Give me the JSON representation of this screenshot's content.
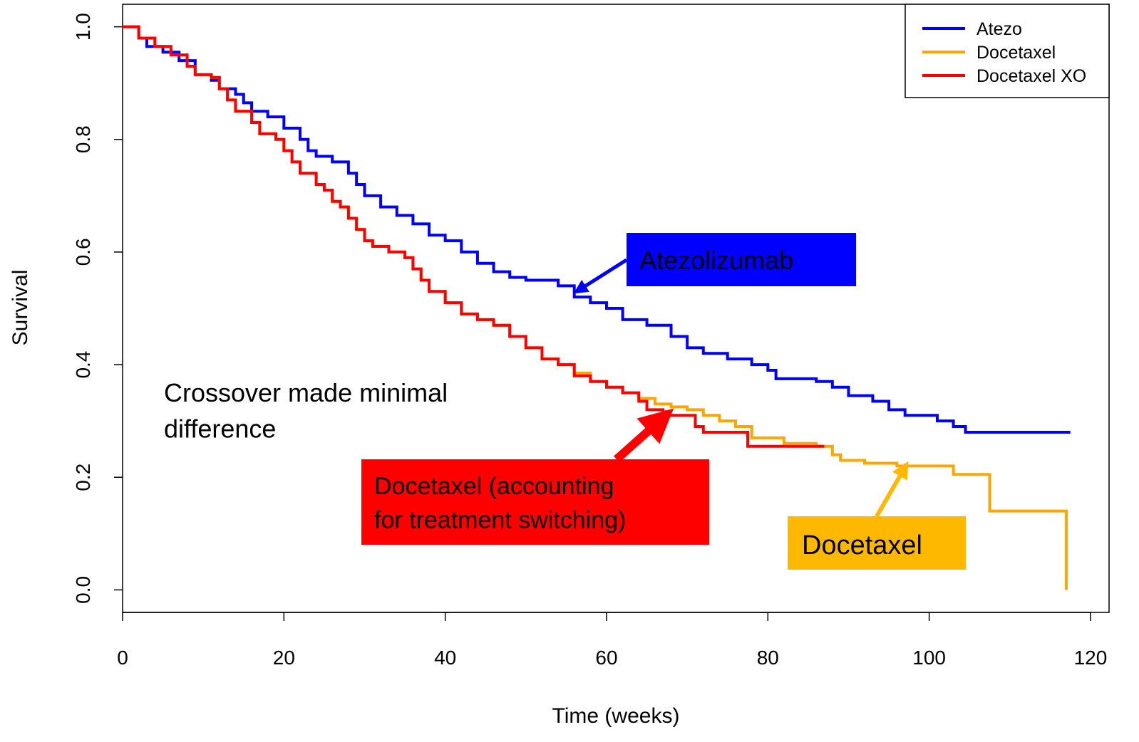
{
  "chart_data": {
    "type": "line",
    "step": "post",
    "x_label": "Time (weeks)",
    "y_label": "Survival",
    "xlim": [
      0,
      122.3
    ],
    "ylim": [
      -0.04,
      1.04
    ],
    "xticks": [
      0,
      20,
      40,
      60,
      80,
      100,
      120
    ],
    "yticks": [
      {
        "value": 0.0,
        "label": "0.0"
      },
      0.2,
      0.4,
      0.6,
      0.8,
      {
        "value": 1.0,
        "label": "1.0"
      }
    ],
    "legend": "top-right",
    "series": [
      {
        "name": "Atezo",
        "color": "#0000ff",
        "x": [
          0,
          2,
          3,
          5,
          7,
          9,
          11,
          12,
          14,
          15,
          16,
          18,
          20,
          22,
          23,
          24,
          26,
          28,
          29,
          30,
          32,
          34,
          36,
          38,
          40,
          42,
          44,
          46,
          48,
          50,
          54,
          56,
          58,
          60,
          62,
          65,
          68,
          70,
          72,
          75,
          78,
          80,
          81,
          86,
          88,
          90,
          93,
          95,
          97,
          101,
          103,
          104.5,
          117.5
        ],
        "values": [
          1.0,
          0.98,
          0.965,
          0.955,
          0.94,
          0.915,
          0.905,
          0.89,
          0.88,
          0.865,
          0.85,
          0.84,
          0.82,
          0.8,
          0.78,
          0.77,
          0.76,
          0.74,
          0.72,
          0.7,
          0.68,
          0.665,
          0.65,
          0.63,
          0.62,
          0.6,
          0.58,
          0.565,
          0.555,
          0.55,
          0.54,
          0.52,
          0.51,
          0.5,
          0.48,
          0.47,
          0.45,
          0.43,
          0.42,
          0.41,
          0.4,
          0.39,
          0.375,
          0.37,
          0.36,
          0.345,
          0.335,
          0.32,
          0.31,
          0.3,
          0.29,
          0.28,
          0.28
        ]
      },
      {
        "name": "Docetaxel",
        "color": "#ffa500",
        "x": [
          0,
          2,
          4,
          6,
          8,
          9,
          11,
          12,
          13,
          14,
          16,
          17,
          19,
          20,
          21,
          22,
          24,
          25,
          26,
          27,
          28,
          29,
          30,
          31,
          33,
          35,
          36,
          37,
          38,
          40,
          42,
          44,
          46,
          48,
          50,
          52,
          54,
          56,
          58,
          60,
          62,
          64,
          66,
          68,
          70,
          72,
          74,
          76,
          78,
          82,
          86,
          88,
          89,
          92,
          96,
          103,
          107.5,
          117
        ],
        "values": [
          1.0,
          0.98,
          0.965,
          0.95,
          0.93,
          0.915,
          0.91,
          0.89,
          0.87,
          0.85,
          0.83,
          0.81,
          0.8,
          0.78,
          0.76,
          0.74,
          0.72,
          0.71,
          0.69,
          0.68,
          0.66,
          0.64,
          0.62,
          0.61,
          0.6,
          0.59,
          0.57,
          0.55,
          0.53,
          0.51,
          0.49,
          0.48,
          0.47,
          0.45,
          0.43,
          0.41,
          0.4,
          0.385,
          0.37,
          0.36,
          0.35,
          0.34,
          0.33,
          0.325,
          0.32,
          0.31,
          0.3,
          0.29,
          0.27,
          0.26,
          0.255,
          0.24,
          0.23,
          0.225,
          0.22,
          0.205,
          0.14,
          0.0
        ]
      },
      {
        "name": "Docetaxel XO",
        "color": "#ff0000",
        "x": [
          0,
          2,
          4,
          6,
          8,
          9,
          11,
          12,
          13,
          14,
          16,
          17,
          19,
          20,
          21,
          22,
          24,
          25,
          26,
          27,
          28,
          29,
          30,
          31,
          33,
          35,
          36,
          37,
          38,
          40,
          42,
          44,
          46,
          48,
          50,
          52,
          54,
          56,
          58,
          60,
          62,
          64,
          65,
          67,
          71,
          72,
          77.5,
          87
        ],
        "values": [
          1.0,
          0.98,
          0.965,
          0.95,
          0.93,
          0.915,
          0.91,
          0.89,
          0.87,
          0.85,
          0.83,
          0.81,
          0.8,
          0.78,
          0.76,
          0.74,
          0.72,
          0.71,
          0.69,
          0.68,
          0.66,
          0.64,
          0.62,
          0.61,
          0.6,
          0.59,
          0.57,
          0.55,
          0.53,
          0.51,
          0.49,
          0.48,
          0.47,
          0.45,
          0.43,
          0.41,
          0.4,
          0.38,
          0.37,
          0.36,
          0.35,
          0.335,
          0.32,
          0.31,
          0.29,
          0.28,
          0.255,
          0.255
        ]
      }
    ],
    "annotations": [
      {
        "lines": [
          "Atezolizumab"
        ],
        "color": "#0000ff",
        "text_color": "#ffffff"
      },
      {
        "lines": [
          "Crossover made minimal",
          "difference"
        ]
      },
      {
        "lines": [
          "Docetaxel (accounting",
          "for treatment switching)"
        ],
        "color": "#ff0000",
        "text_color": "#000000"
      },
      {
        "lines": [
          "Docetaxel"
        ],
        "color": "#ffb800",
        "text_color": "#000000"
      }
    ]
  }
}
